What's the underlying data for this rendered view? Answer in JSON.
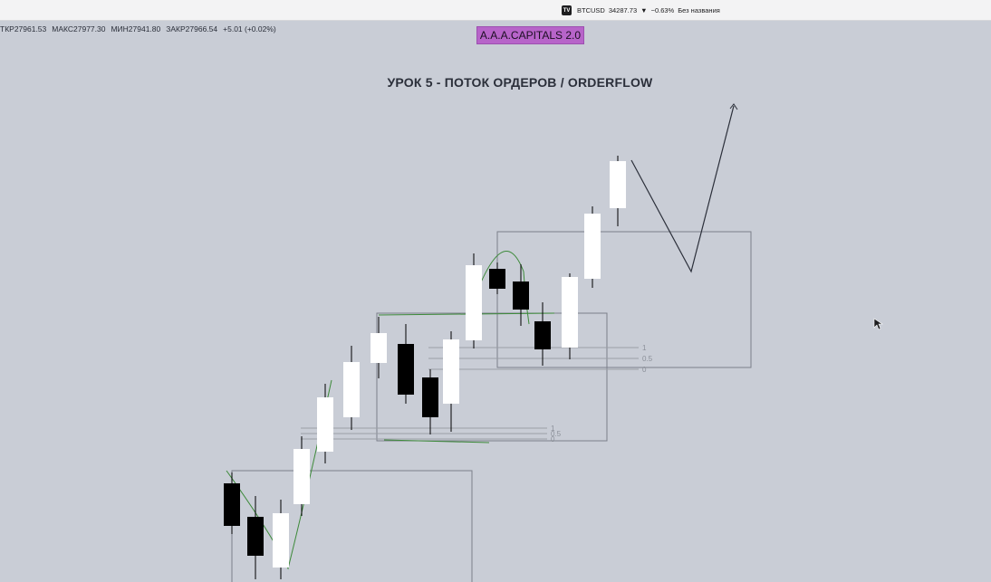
{
  "topbar": {
    "symbol": "BTCUSD",
    "price": "34287.73",
    "change_arrow": "▼",
    "change": "−0.63%",
    "layout_name": "Без названия"
  },
  "ohlc": {
    "close_prev": "ТКР27961.53",
    "high": "МАКС27977.30",
    "low": "МИН27941.80",
    "close": "ЗАКР27966.54",
    "delta": "+5.01 (+0.02%)"
  },
  "badge": {
    "text": "A.A.A.CAPITALS 2.0"
  },
  "lesson": {
    "title": "УРОК 5 -  ПОТОК ОРДЕРОВ / ORDERFLOW"
  },
  "fib_labels": {
    "box2": [
      "1",
      "0.5",
      "0"
    ],
    "box3": [
      "1",
      "0.5",
      "0"
    ]
  },
  "colors": {
    "background": "#c9cdd6",
    "bull_candle": "#ffffff",
    "bear_candle": "#000000",
    "badge": "#b764c9",
    "trend_line": "#3d8a3a",
    "box_stroke": "#7c808a"
  }
}
